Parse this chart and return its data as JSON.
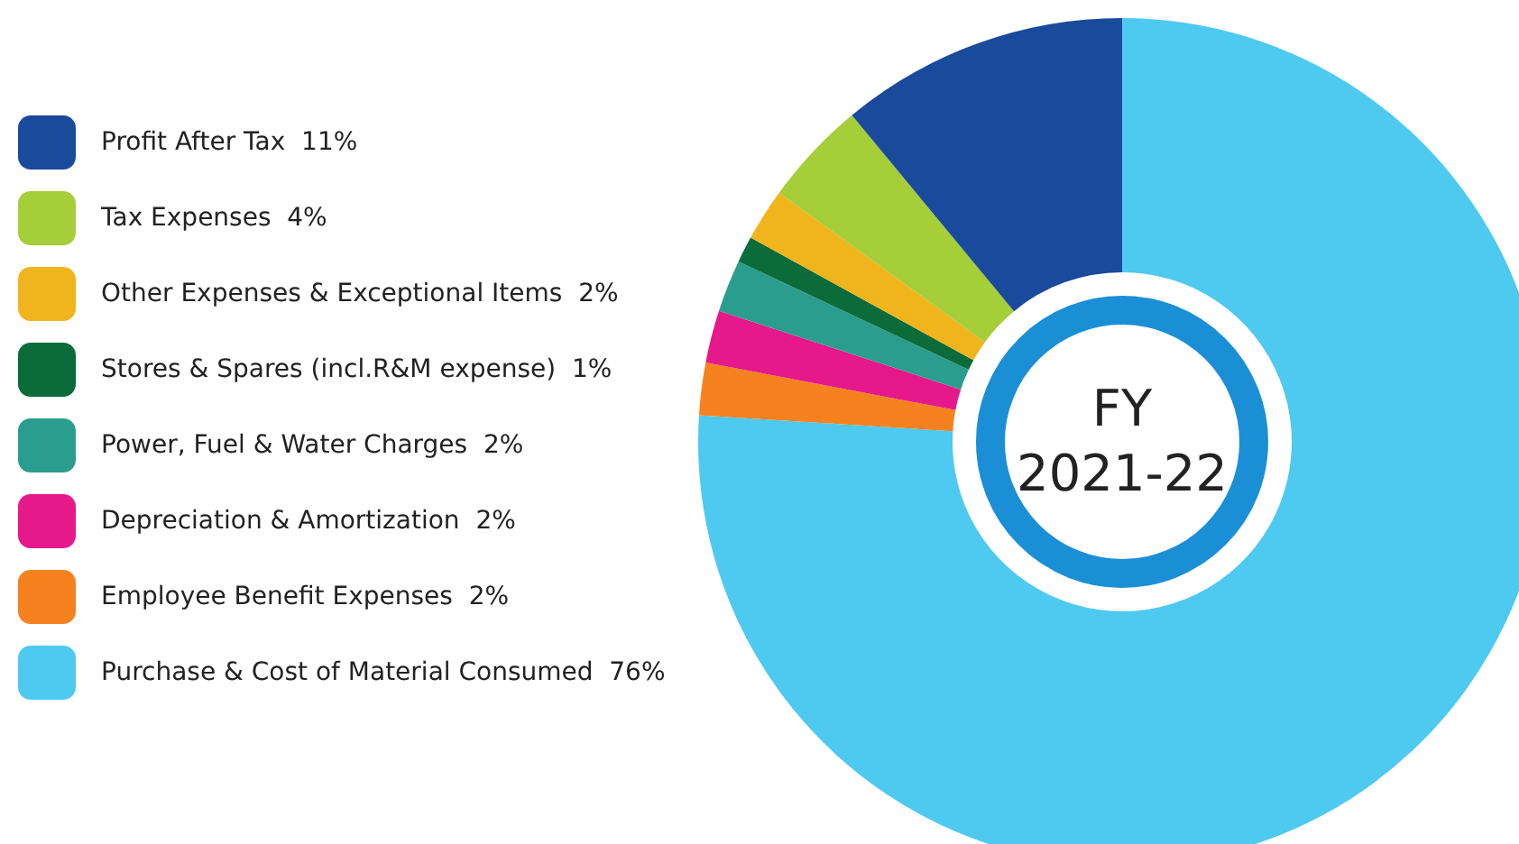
{
  "chart_data": {
    "type": "donut",
    "title": "FY 2021-22",
    "categories": [
      "Profit After Tax",
      "Tax Expenses",
      "Other Expenses & Exceptional Items",
      "Stores & Spares (incl.R&M expense)",
      "Power, Fuel & Water Charges",
      "Depreciation & Amortization",
      "Employee Benefit Expenses",
      "Purchase & Cost of Material Consumed"
    ],
    "values": [
      11,
      4,
      2,
      1,
      2,
      2,
      2,
      76
    ],
    "value_labels": [
      "11%",
      "4%",
      "2%",
      "1%",
      "2%",
      "2%",
      "2%",
      "76%"
    ],
    "colors": [
      "#1a4a9c",
      "#a6ce39",
      "#f0b41c",
      "#0b6b3a",
      "#2a9d8f",
      "#e6198a",
      "#f5821f",
      "#4ec9f0"
    ],
    "legend": "left"
  }
}
